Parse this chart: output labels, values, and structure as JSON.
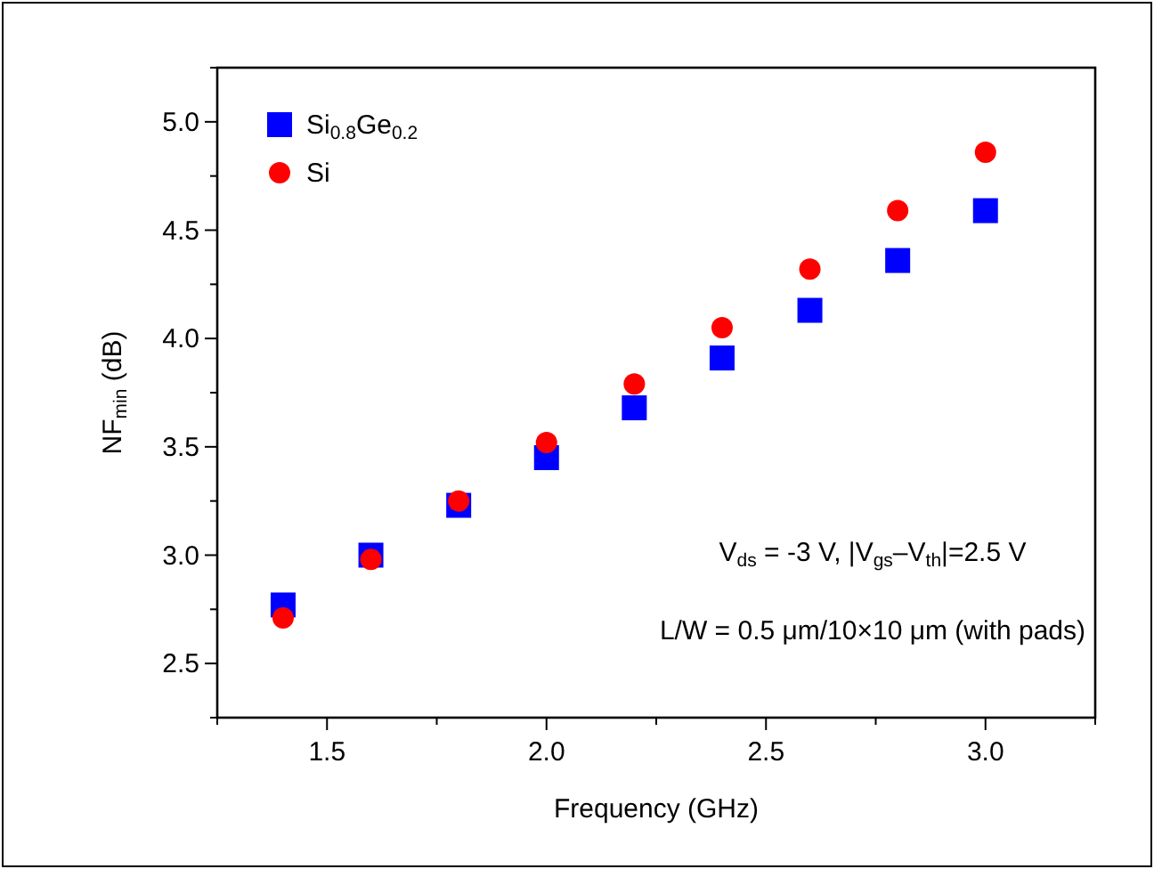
{
  "chart_data": {
    "type": "scatter",
    "xlabel": "Frequency (GHz)",
    "ylabel": "NF$_{min}$ (dB)",
    "x": [
      1.4,
      1.6,
      1.8,
      2.0,
      2.2,
      2.4,
      2.6,
      2.8,
      3.0
    ],
    "series": [
      {
        "name": "Si$_{0.8}$Ge$_{0.2}$",
        "color": "#0000ff",
        "marker": "square",
        "values": [
          2.77,
          3.0,
          3.23,
          3.45,
          3.68,
          3.91,
          4.13,
          4.36,
          4.59
        ]
      },
      {
        "name": "Si",
        "color": "#ff0000",
        "marker": "circle",
        "values": [
          2.71,
          2.98,
          3.25,
          3.52,
          3.79,
          4.05,
          4.32,
          4.59,
          4.86
        ]
      }
    ],
    "xlim": [
      1.25,
      3.25
    ],
    "xticks": [
      {
        "value": 1.25,
        "label": null
      },
      1.5,
      {
        "value": 1.75,
        "label": null
      },
      {
        "value": 2,
        "label": "2.0"
      },
      {
        "value": 2.25,
        "label": null
      },
      2.5,
      {
        "value": 2.75,
        "label": null
      },
      {
        "value": 3,
        "label": "3.0"
      },
      {
        "value": 3.25,
        "label": null
      }
    ],
    "ylim": [
      2.25,
      5.25
    ],
    "yticks": [
      {
        "value": 2.25,
        "label": null
      },
      2.5,
      {
        "value": 2.75,
        "label": null
      },
      {
        "value": 3,
        "label": "3.0"
      },
      {
        "value": 3.25,
        "label": null
      },
      3.5,
      {
        "value": 3.75,
        "label": null
      },
      {
        "value": 4,
        "label": "4.0"
      },
      {
        "value": 4.25,
        "label": null
      },
      4.5,
      {
        "value": 4.75,
        "label": null
      },
      {
        "value": 5,
        "label": "5.0"
      },
      {
        "value": 5.25,
        "label": null
      }
    ],
    "grid": false,
    "legend": "top left",
    "annotations": [
      "V$_{ds}$ = -3 V, |V$_{gs}$–V$_{th}$|=2.5 V",
      "L/W = 0.5 μm/10×10 μm (with pads)"
    ]
  }
}
